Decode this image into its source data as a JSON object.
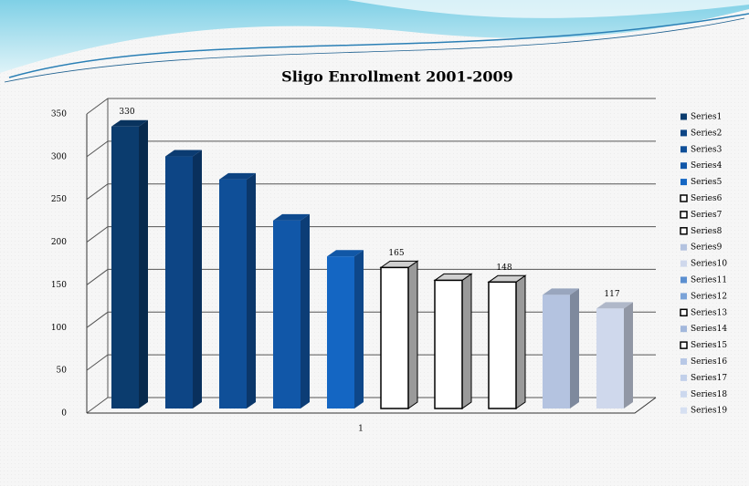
{
  "chart_data": {
    "type": "bar3d",
    "title": "Sligo Enrollment 2001-2009",
    "categories": [
      "1"
    ],
    "series": [
      {
        "name": "Series1",
        "color": "#0b3c6e",
        "values": [
          330
        ]
      },
      {
        "name": "Series2",
        "color": "#0d4585",
        "values": [
          295
        ]
      },
      {
        "name": "Series3",
        "color": "#0f4f98",
        "values": [
          268
        ]
      },
      {
        "name": "Series4",
        "color": "#1157a8",
        "values": [
          220
        ]
      },
      {
        "name": "Series5",
        "color": "#1466c3",
        "values": [
          178
        ]
      },
      {
        "name": "Series6",
        "color": "#ffffff",
        "outline": "#000000",
        "values": [
          165
        ]
      },
      {
        "name": "Series7",
        "color": "#ffffff",
        "outline": "#000000",
        "values": [
          150
        ]
      },
      {
        "name": "Series8",
        "color": "#ffffff",
        "outline": "#000000",
        "values": [
          148
        ]
      },
      {
        "name": "Series9",
        "color": "#b4c3e0",
        "values": [
          133
        ]
      },
      {
        "name": "Series10",
        "color": "#cfd8ec",
        "values": [
          117
        ]
      },
      {
        "name": "Series11",
        "color": "#5b8fd0",
        "values": [
          null
        ]
      },
      {
        "name": "Series12",
        "color": "#7ba3d8",
        "values": [
          null
        ]
      },
      {
        "name": "Series13",
        "color": "#ffffff",
        "outline": "#000000",
        "values": [
          null
        ]
      },
      {
        "name": "Series14",
        "color": "#a3b8dc",
        "values": [
          null
        ]
      },
      {
        "name": "Series15",
        "color": "#ffffff",
        "outline": "#000000",
        "values": [
          null
        ]
      },
      {
        "name": "Series16",
        "color": "#b8c8e6",
        "values": [
          null
        ]
      },
      {
        "name": "Series17",
        "color": "#c2d0ea",
        "values": [
          null
        ]
      },
      {
        "name": "Series18",
        "color": "#ccd8ee",
        "values": [
          null
        ]
      },
      {
        "name": "Series19",
        "color": "#d6e0f2",
        "values": [
          null
        ]
      }
    ],
    "data_labels": [
      "Series1",
      "Series6",
      "Series8",
      "Series10"
    ],
    "ylim": [
      0,
      350
    ],
    "yticks": [
      0,
      50,
      100,
      150,
      200,
      250,
      300,
      350
    ],
    "grid": true,
    "legend": "right"
  }
}
